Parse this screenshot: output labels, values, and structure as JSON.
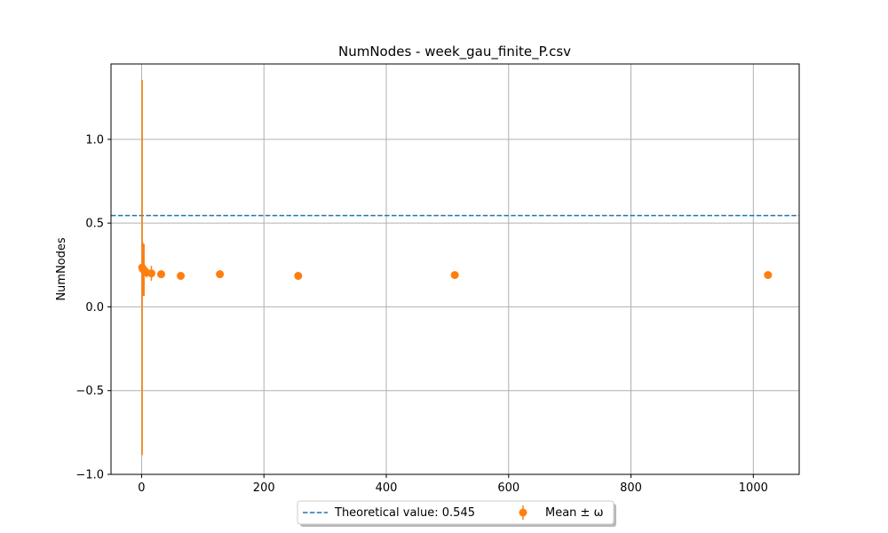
{
  "chart_data": {
    "type": "scatter",
    "title": "NumNodes - week_gau_finite_P.csv",
    "xlabel": "",
    "ylabel": "NumNodes",
    "xlim": [
      -50,
      1075
    ],
    "ylim": [
      -1.0,
      1.45
    ],
    "xticks": [
      0,
      200,
      400,
      600,
      800,
      1000
    ],
    "xtick_labels": [
      "0",
      "200",
      "400",
      "600",
      "800",
      "1000"
    ],
    "yticks": [
      -1.0,
      -0.5,
      0.0,
      0.5,
      1.0
    ],
    "ytick_labels": [
      "−1.0",
      "−0.5",
      "0.0",
      "0.5",
      "1.0"
    ],
    "grid": true,
    "legend_position": "bottom-center, below axes",
    "colors": {
      "series": "#ff7f0e",
      "reference": "#1f77b4",
      "grid": "#b0b0b0"
    },
    "reference_line": {
      "label": "Theoretical value: 0.545",
      "value": 0.545,
      "style": "dashed"
    },
    "series": [
      {
        "name": "Mean ± ω",
        "points": [
          {
            "x": 1,
            "y": 0.235,
            "err": 1.12
          },
          {
            "x": 2,
            "y": 0.225,
            "err": 0.16
          },
          {
            "x": 4,
            "y": 0.22,
            "err": 0.155
          },
          {
            "x": 8,
            "y": 0.205,
            "err": 0.03
          },
          {
            "x": 16,
            "y": 0.2,
            "err": 0.045
          },
          {
            "x": 32,
            "y": 0.195,
            "err": 0.02
          },
          {
            "x": 64,
            "y": 0.185,
            "err": 0.01
          },
          {
            "x": 128,
            "y": 0.195,
            "err": 0.005
          },
          {
            "x": 256,
            "y": 0.185,
            "err": 0.005
          },
          {
            "x": 512,
            "y": 0.19,
            "err": 0.005
          },
          {
            "x": 1024,
            "y": 0.19,
            "err": 0.005
          }
        ]
      }
    ]
  }
}
